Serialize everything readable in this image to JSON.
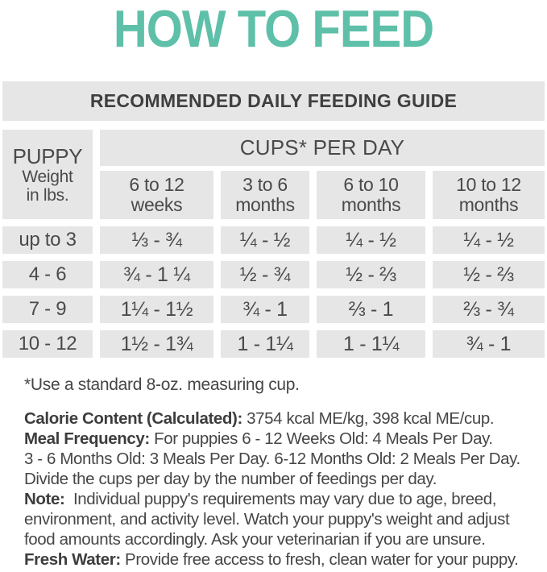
{
  "colors": {
    "accent": "#5EC0A8",
    "cell_bg": "#E6E6E6",
    "heading_text": "#3F3F3F",
    "body_text": "#464646"
  },
  "title": "HOW TO FEED",
  "table": {
    "header": "RECOMMENDED DAILY FEEDING GUIDE",
    "col_group_label": "CUPS* PER DAY",
    "row_header": {
      "line1": "PUPPY",
      "line2": "Weight",
      "line3": "in lbs."
    },
    "columns": [
      {
        "top": "6 to 12",
        "bottom": "weeks"
      },
      {
        "top": "3 to 6",
        "bottom": "months"
      },
      {
        "top": "6 to 10",
        "bottom": "months"
      },
      {
        "top": "10 to 12",
        "bottom": "months"
      }
    ],
    "rows": [
      {
        "weight": "up to 3",
        "values": [
          "⅓ - ¾",
          "¼ - ½",
          "¼ - ½",
          "¼ - ½"
        ]
      },
      {
        "weight": "4 - 6",
        "values": [
          "¾ - 1 ¼",
          "½ - ¾",
          "½ - ⅔",
          "½ - ⅔"
        ]
      },
      {
        "weight": "7 - 9",
        "values": [
          "1¼ - 1½",
          "¾ - 1",
          "⅔ - 1",
          "⅔ - ¾"
        ]
      },
      {
        "weight": "10 - 12",
        "values": [
          "1½ - 1¾",
          "1 - 1¼",
          "1 - 1¼",
          "¾ - 1"
        ]
      }
    ]
  },
  "footnote": "*Use a standard 8-oz. measuring cup.",
  "notes": [
    {
      "bold": "Calorie Content (Calculated):",
      "text": " 3754 kcal ME/kg, 398 kcal ME/cup."
    },
    {
      "bold": "Meal Frequency:",
      "text": " For puppies 6 - 12 Weeks Old: 4 Meals Per Day."
    },
    {
      "bold": "",
      "text": "3 - 6 Months Old: 3 Meals Per Day. 6-12 Months Old: 2 Meals Per Day."
    },
    {
      "bold": "",
      "text": "Divide the cups per day by the number of feedings per day."
    },
    {
      "bold": "Note:",
      "text": "  Individual puppy's requirements may vary due to age, breed,"
    },
    {
      "bold": "",
      "text": "environment, and activity level. Watch your puppy's weight and adjust"
    },
    {
      "bold": "",
      "text": "food amounts accordingly. Ask your veterinarian if you are unsure."
    },
    {
      "bold": "Fresh Water:",
      "text": " Provide free access to fresh, clean water for your puppy."
    }
  ]
}
